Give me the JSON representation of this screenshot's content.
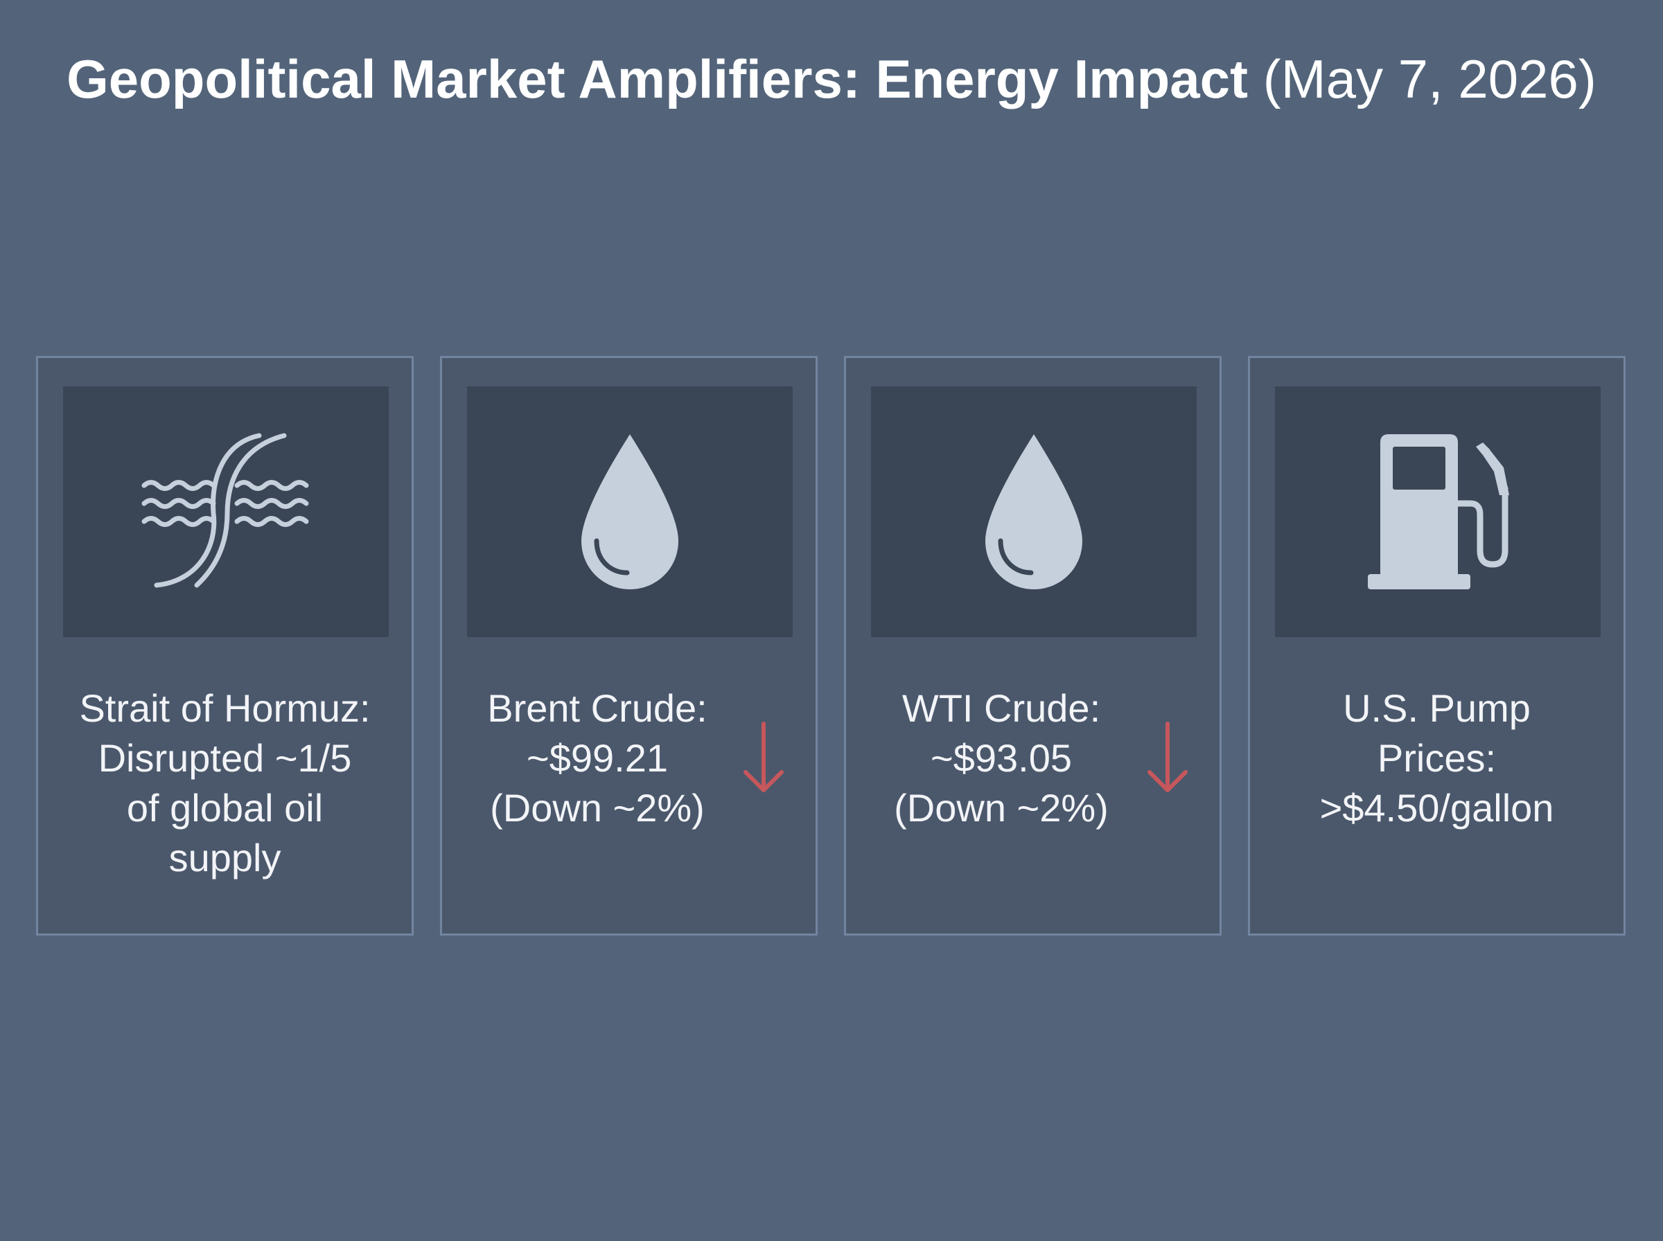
{
  "title": {
    "bold": "Geopolitical Market Amplifiers: Energy Impact",
    "date": "(May 7, 2026)"
  },
  "colors": {
    "background": "#53647a",
    "card": "#4b586c",
    "icon_box": "#3a4556",
    "icon": "#c6d0dc",
    "down_arrow": "#c6575c"
  },
  "cards": [
    {
      "icon": "strait-waves-icon",
      "lines": [
        "Strait of Hormuz:",
        "Disrupted ~1/5",
        "of global oil",
        "supply"
      ]
    },
    {
      "icon": "oil-drop-icon",
      "lines": [
        "Brent Crude:",
        "~$99.21",
        "(Down ~2%)"
      ],
      "trend": "down-arrow-icon"
    },
    {
      "icon": "oil-drop-icon",
      "lines": [
        "WTI Crude:",
        "~$93.05",
        "(Down ~2%)"
      ],
      "trend": "down-arrow-icon"
    },
    {
      "icon": "fuel-pump-icon",
      "lines": [
        "U.S. Pump",
        "Prices:",
        ">$4.50/gallon"
      ]
    }
  ]
}
